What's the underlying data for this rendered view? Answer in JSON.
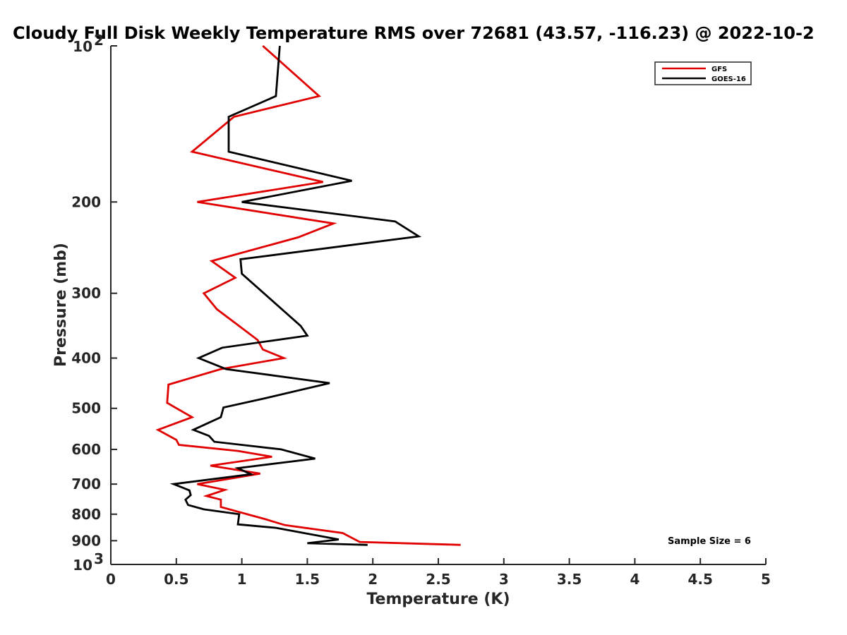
{
  "chart_data": {
    "type": "line",
    "title": "Cloudy Full Disk Weekly Temperature RMS over 72681 (43.57, -116.23) @ 2022-10-2",
    "xlabel": "Temperature (K)",
    "ylabel": "Pressure (mb)",
    "xlim": [
      0,
      5
    ],
    "ylim": [
      100,
      1000
    ],
    "y_scale": "log",
    "y_reversed": true,
    "x_ticks": [
      "0",
      "0.5",
      "1",
      "1.5",
      "2",
      "2.5",
      "3",
      "3.5",
      "4",
      "4.5",
      "5"
    ],
    "x_tick_values": [
      0,
      0.5,
      1,
      1.5,
      2,
      2.5,
      3,
      3.5,
      4,
      4.5,
      5
    ],
    "y_tick_values": [
      100,
      200,
      300,
      400,
      500,
      600,
      700,
      800,
      900,
      1000
    ],
    "y_ticks": [
      {
        "base": "10",
        "exp": "2"
      },
      {
        "text": "200"
      },
      {
        "text": "300"
      },
      {
        "text": "400"
      },
      {
        "text": "500"
      },
      {
        "text": "600"
      },
      {
        "text": "700"
      },
      {
        "text": "800"
      },
      {
        "text": "900"
      },
      {
        "base": "10",
        "exp": "3"
      }
    ],
    "grid": false,
    "legend_position": "top-right",
    "annotation": "Sample Size = 6",
    "series": [
      {
        "name": "GFS",
        "color": "#e00000",
        "points": [
          {
            "x": 1.16,
            "y": 100
          },
          {
            "x": 1.59,
            "y": 125
          },
          {
            "x": 0.94,
            "y": 137
          },
          {
            "x": 0.62,
            "y": 160
          },
          {
            "x": 1.62,
            "y": 183
          },
          {
            "x": 0.66,
            "y": 200
          },
          {
            "x": 1.7,
            "y": 220
          },
          {
            "x": 1.43,
            "y": 234
          },
          {
            "x": 0.77,
            "y": 260
          },
          {
            "x": 0.95,
            "y": 280
          },
          {
            "x": 0.71,
            "y": 300
          },
          {
            "x": 0.81,
            "y": 322
          },
          {
            "x": 0.98,
            "y": 347
          },
          {
            "x": 1.12,
            "y": 369
          },
          {
            "x": 1.16,
            "y": 385
          },
          {
            "x": 1.32,
            "y": 400
          },
          {
            "x": 0.84,
            "y": 420
          },
          {
            "x": 0.44,
            "y": 450
          },
          {
            "x": 0.43,
            "y": 488
          },
          {
            "x": 0.62,
            "y": 520
          },
          {
            "x": 0.36,
            "y": 550
          },
          {
            "x": 0.5,
            "y": 575
          },
          {
            "x": 0.52,
            "y": 588
          },
          {
            "x": 0.97,
            "y": 604
          },
          {
            "x": 1.23,
            "y": 620
          },
          {
            "x": 0.76,
            "y": 645
          },
          {
            "x": 1.14,
            "y": 668
          },
          {
            "x": 0.66,
            "y": 700
          },
          {
            "x": 0.87,
            "y": 718
          },
          {
            "x": 0.73,
            "y": 738
          },
          {
            "x": 0.84,
            "y": 750
          },
          {
            "x": 0.84,
            "y": 775
          },
          {
            "x": 1.18,
            "y": 818
          },
          {
            "x": 1.33,
            "y": 840
          },
          {
            "x": 1.77,
            "y": 870
          },
          {
            "x": 1.9,
            "y": 905
          },
          {
            "x": 2.67,
            "y": 917
          }
        ]
      },
      {
        "name": "GOES-16",
        "color": "#000000",
        "points": [
          {
            "x": 1.29,
            "y": 100
          },
          {
            "x": 1.26,
            "y": 125
          },
          {
            "x": 0.9,
            "y": 137
          },
          {
            "x": 0.9,
            "y": 160
          },
          {
            "x": 1.84,
            "y": 182
          },
          {
            "x": 1.0,
            "y": 200
          },
          {
            "x": 2.17,
            "y": 218
          },
          {
            "x": 2.35,
            "y": 233
          },
          {
            "x": 0.99,
            "y": 258
          },
          {
            "x": 1.0,
            "y": 275
          },
          {
            "x": 1.45,
            "y": 347
          },
          {
            "x": 1.5,
            "y": 362
          },
          {
            "x": 0.85,
            "y": 382
          },
          {
            "x": 0.67,
            "y": 400
          },
          {
            "x": 0.88,
            "y": 420
          },
          {
            "x": 1.67,
            "y": 447
          },
          {
            "x": 1.18,
            "y": 478
          },
          {
            "x": 0.86,
            "y": 498
          },
          {
            "x": 0.84,
            "y": 520
          },
          {
            "x": 0.63,
            "y": 550
          },
          {
            "x": 0.75,
            "y": 565
          },
          {
            "x": 0.79,
            "y": 580
          },
          {
            "x": 1.3,
            "y": 600
          },
          {
            "x": 1.56,
            "y": 625
          },
          {
            "x": 0.97,
            "y": 652
          },
          {
            "x": 1.07,
            "y": 670
          },
          {
            "x": 0.48,
            "y": 700
          },
          {
            "x": 0.6,
            "y": 720
          },
          {
            "x": 0.61,
            "y": 735
          },
          {
            "x": 0.57,
            "y": 750
          },
          {
            "x": 0.59,
            "y": 768
          },
          {
            "x": 0.71,
            "y": 783
          },
          {
            "x": 0.98,
            "y": 800
          },
          {
            "x": 0.97,
            "y": 837
          },
          {
            "x": 1.26,
            "y": 850
          },
          {
            "x": 1.74,
            "y": 895
          },
          {
            "x": 1.5,
            "y": 910
          },
          {
            "x": 1.96,
            "y": 917
          }
        ]
      }
    ]
  }
}
